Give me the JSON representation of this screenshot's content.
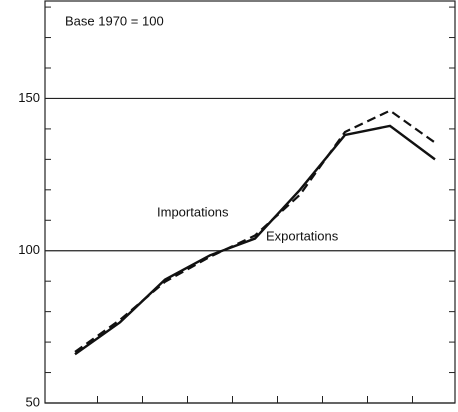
{
  "chart_data": {
    "type": "line",
    "annotation": "Base 1970 = 100",
    "categories": [
      null,
      null,
      null,
      null,
      null,
      null,
      null,
      null,
      null
    ],
    "series": [
      {
        "name": "Importations",
        "color": "#111111",
        "dash": true,
        "values": [
          66.8,
          77.3,
          89.8,
          98,
          105,
          118.4,
          139,
          146,
          135.5
        ]
      },
      {
        "name": "Exportations",
        "color": "#111111",
        "dash": false,
        "values": [
          66,
          76.5,
          90.5,
          98.5,
          104,
          120,
          138,
          141,
          130
        ]
      }
    ],
    "ylim": [
      50,
      182
    ],
    "yticks": [
      50,
      100,
      150
    ],
    "yminor_ticks": [
      60,
      70,
      80,
      90,
      110,
      120,
      130,
      140,
      160,
      170,
      180
    ],
    "grid": true
  }
}
